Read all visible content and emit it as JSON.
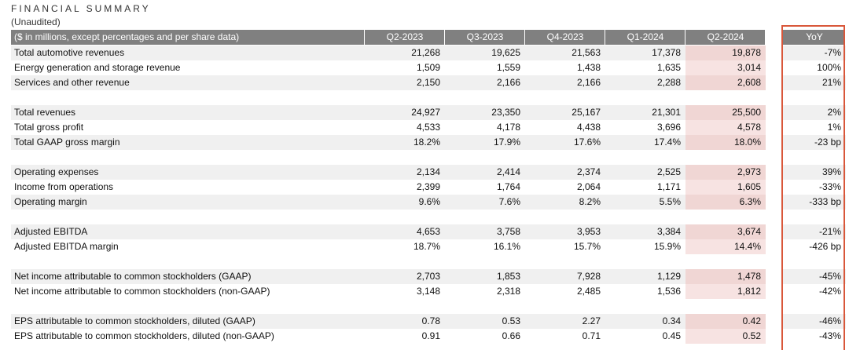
{
  "header": {
    "title": "FINANCIAL SUMMARY",
    "subtitle": "(Unaudited)"
  },
  "table": {
    "columns": [
      "($ in millions, except percentages and per share data)",
      "Q2-2023",
      "Q3-2023",
      "Q4-2023",
      "Q1-2024",
      "Q2-2024",
      "YoY"
    ],
    "groups": [
      [
        [
          "Total automotive revenues",
          "21,268",
          "19,625",
          "21,563",
          "17,378",
          "19,878",
          "-7%"
        ],
        [
          "Energy generation and storage revenue",
          "1,509",
          "1,559",
          "1,438",
          "1,635",
          "3,014",
          "100%"
        ],
        [
          "Services and other revenue",
          "2,150",
          "2,166",
          "2,166",
          "2,288",
          "2,608",
          "21%"
        ]
      ],
      [
        [
          "Total revenues",
          "24,927",
          "23,350",
          "25,167",
          "21,301",
          "25,500",
          "2%"
        ],
        [
          "Total gross profit",
          "4,533",
          "4,178",
          "4,438",
          "3,696",
          "4,578",
          "1%"
        ],
        [
          "Total GAAP gross margin",
          "18.2%",
          "17.9%",
          "17.6%",
          "17.4%",
          "18.0%",
          "-23 bp"
        ]
      ],
      [
        [
          "Operating expenses",
          "2,134",
          "2,414",
          "2,374",
          "2,525",
          "2,973",
          "39%"
        ],
        [
          "Income from operations",
          "2,399",
          "1,764",
          "2,064",
          "1,171",
          "1,605",
          "-33%"
        ],
        [
          "Operating margin",
          "9.6%",
          "7.6%",
          "8.2%",
          "5.5%",
          "6.3%",
          "-333 bp"
        ]
      ],
      [
        [
          "Adjusted EBITDA",
          "4,653",
          "3,758",
          "3,953",
          "3,384",
          "3,674",
          "-21%"
        ],
        [
          "Adjusted EBITDA margin",
          "18.7%",
          "16.1%",
          "15.7%",
          "15.9%",
          "14.4%",
          "-426 bp"
        ]
      ],
      [
        [
          "Net income attributable to common stockholders (GAAP)",
          "2,703",
          "1,853",
          "7,928",
          "1,129",
          "1,478",
          "-45%"
        ],
        [
          "Net income attributable to common stockholders (non-GAAP)",
          "3,148",
          "2,318",
          "2,485",
          "1,536",
          "1,812",
          "-42%"
        ]
      ],
      [
        [
          "EPS attributable to common stockholders, diluted (GAAP)",
          "0.78",
          "0.53",
          "2.27",
          "0.34",
          "0.42",
          "-46%"
        ],
        [
          "EPS attributable to common stockholders, diluted (non-GAAP)",
          "0.91",
          "0.66",
          "0.71",
          "0.45",
          "0.52",
          "-43%"
        ]
      ]
    ]
  }
}
